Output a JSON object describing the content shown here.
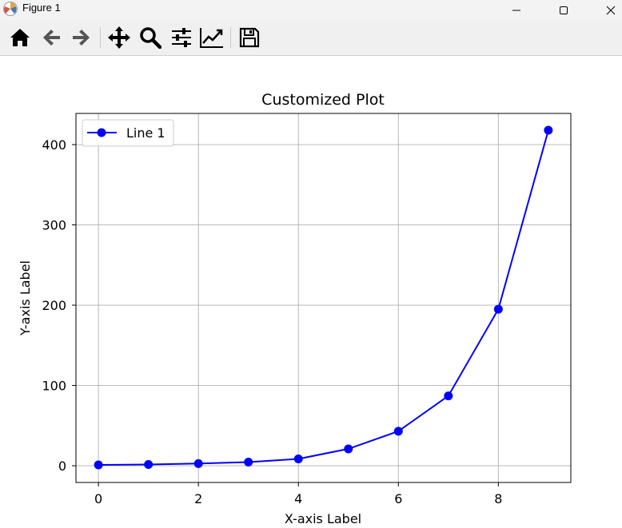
{
  "window": {
    "title": "Figure 1"
  },
  "toolbar": {
    "buttons": [
      {
        "name": "home",
        "icon": "home-icon"
      },
      {
        "name": "back",
        "icon": "arrow-left-icon"
      },
      {
        "name": "forward",
        "icon": "arrow-right-icon"
      },
      {
        "name": "pan",
        "icon": "move-icon"
      },
      {
        "name": "zoom",
        "icon": "magnifier-icon"
      },
      {
        "name": "configure-subplots",
        "icon": "sliders-icon"
      },
      {
        "name": "edit-axis",
        "icon": "line-chart-icon"
      },
      {
        "name": "save",
        "icon": "floppy-disk-icon"
      }
    ]
  },
  "chart_data": {
    "type": "line",
    "title": "Customized Plot",
    "xlabel": "X-axis Label",
    "ylabel": "Y-axis Label",
    "x": [
      0,
      1,
      2,
      3,
      4,
      5,
      6,
      7,
      8,
      9
    ],
    "series": [
      {
        "name": "Line 1",
        "color": "#0000ff",
        "marker": "o",
        "values": [
          1,
          1.5,
          2.7,
          4.5,
          8.5,
          21,
          43,
          87,
          195,
          418
        ]
      }
    ],
    "xlim": [
      -0.45,
      9.45
    ],
    "ylim": [
      -20.85,
      438.85
    ],
    "xticks": [
      0,
      2,
      4,
      6,
      8
    ],
    "yticks": [
      0,
      100,
      200,
      300,
      400
    ],
    "grid": true,
    "legend": "top-left"
  }
}
